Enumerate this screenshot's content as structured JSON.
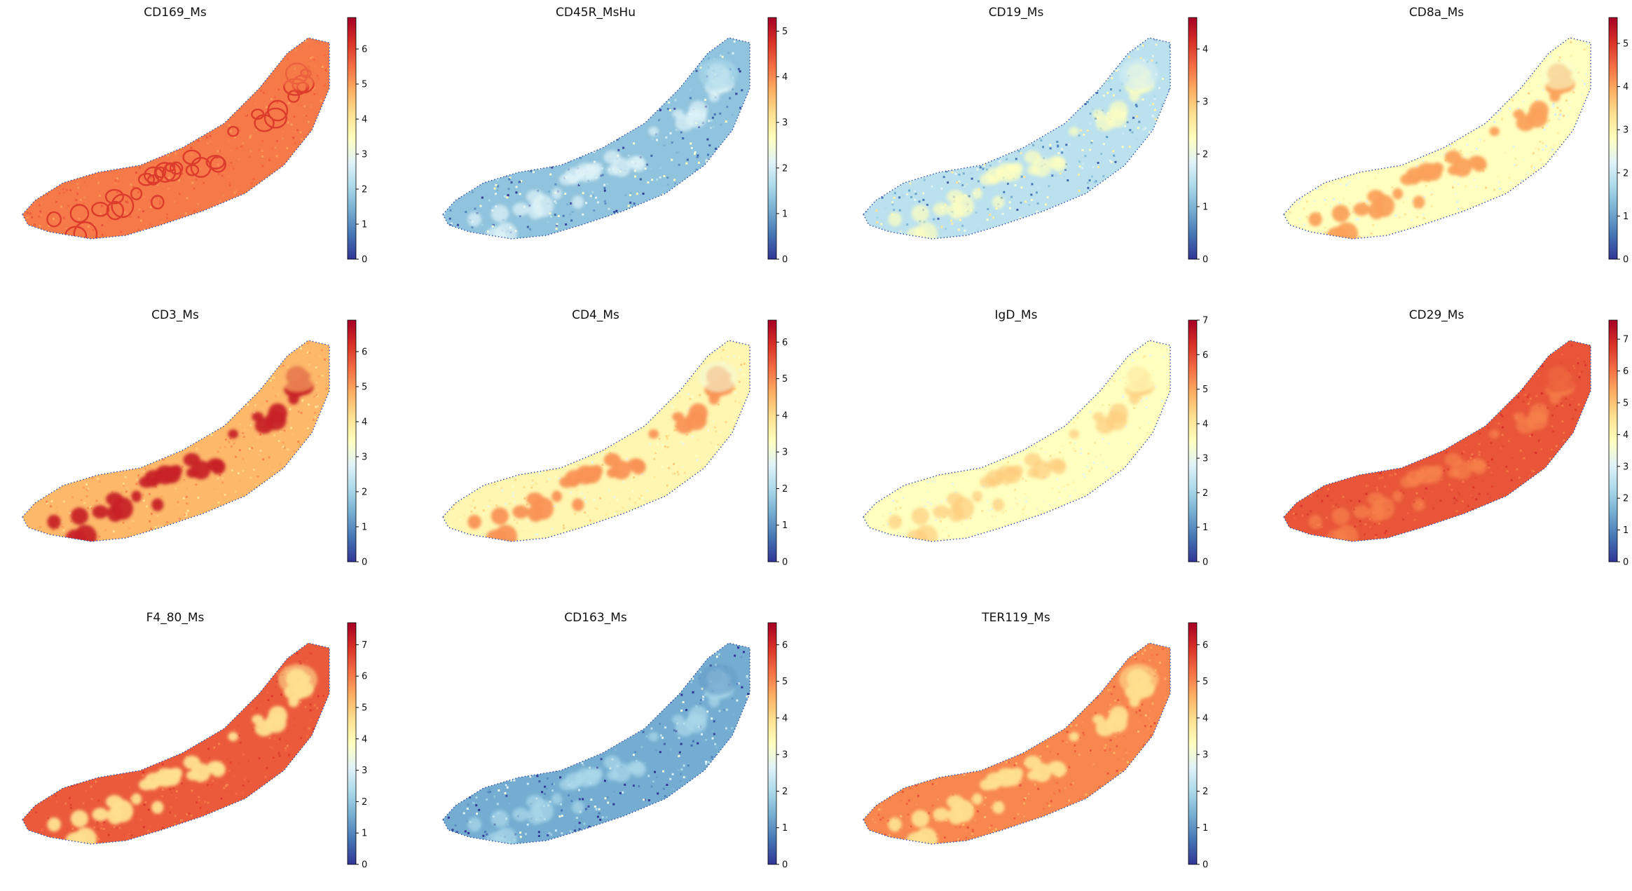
{
  "colors": {
    "colormap": "RdYlBu_r",
    "stops": [
      "#313695",
      "#4575b4",
      "#74add1",
      "#abd9e9",
      "#e0f3f8",
      "#ffffbf",
      "#fee090",
      "#fdae61",
      "#f46d43",
      "#d73027",
      "#a50026"
    ]
  },
  "chart_data": [
    {
      "type": "heatmap",
      "title": "CD169_Ms",
      "colorbar_ticks": [
        0,
        1,
        2,
        3,
        4,
        5,
        6
      ],
      "vmax": 6.9,
      "base_level": 0.78,
      "blob_level": 0.88,
      "blob_style": "rings",
      "tip_level": 0.78,
      "noise": 0.03
    },
    {
      "type": "heatmap",
      "title": "CD45R_MsHu",
      "colorbar_ticks": [
        0,
        1,
        2,
        3,
        4,
        5
      ],
      "vmax": 5.3,
      "base_level": 0.25,
      "blob_level": 0.4,
      "blob_style": "soft",
      "tip_level": 0.3,
      "noise": 0.12
    },
    {
      "type": "heatmap",
      "title": "CD19_Ms",
      "colorbar_ticks": [
        0,
        1,
        2,
        3,
        4
      ],
      "vmax": 4.6,
      "base_level": 0.33,
      "blob_level": 0.5,
      "blob_style": "soft",
      "tip_level": 0.38,
      "noise": 0.12
    },
    {
      "type": "heatmap",
      "title": "CD8a_Ms",
      "colorbar_ticks": [
        0,
        1,
        2,
        3,
        4,
        5
      ],
      "vmax": 5.6,
      "base_level": 0.5,
      "blob_level": 0.72,
      "blob_style": "spots",
      "tip_level": 0.48,
      "noise": 0.06
    },
    {
      "type": "heatmap",
      "title": "CD3_Ms",
      "colorbar_ticks": [
        0,
        1,
        2,
        3,
        4,
        5,
        6
      ],
      "vmax": 6.9,
      "base_level": 0.68,
      "blob_level": 0.93,
      "blob_style": "spots",
      "tip_level": 0.68,
      "noise": 0.04
    },
    {
      "type": "heatmap",
      "title": "CD4_Ms",
      "colorbar_ticks": [
        0,
        1,
        2,
        3,
        4,
        5,
        6
      ],
      "vmax": 6.6,
      "base_level": 0.53,
      "blob_level": 0.74,
      "blob_style": "spots",
      "tip_level": 0.46,
      "noise": 0.05
    },
    {
      "type": "heatmap",
      "title": "IgD_Ms",
      "colorbar_ticks": [
        0,
        1,
        2,
        3,
        4,
        5,
        6,
        7
      ],
      "vmax": 7.0,
      "base_level": 0.5,
      "blob_level": 0.64,
      "blob_style": "soft",
      "tip_level": 0.5,
      "noise": 0.04
    },
    {
      "type": "heatmap",
      "title": "CD29_Ms",
      "colorbar_ticks": [
        0,
        1,
        2,
        3,
        4,
        5,
        6,
        7
      ],
      "vmax": 7.6,
      "base_level": 0.84,
      "blob_level": 0.77,
      "blob_style": "soft",
      "tip_level": 0.84,
      "noise": 0.03
    },
    {
      "type": "heatmap",
      "title": "F4_80_Ms",
      "colorbar_ticks": [
        0,
        1,
        2,
        3,
        4,
        5,
        6,
        7
      ],
      "vmax": 7.7,
      "base_level": 0.83,
      "blob_level": 0.6,
      "blob_style": "spots",
      "tip_level": 0.6,
      "noise": 0.03
    },
    {
      "type": "heatmap",
      "title": "CD163_Ms",
      "colorbar_ticks": [
        0,
        1,
        2,
        3,
        4,
        5,
        6
      ],
      "vmax": 6.6,
      "base_level": 0.2,
      "blob_level": 0.3,
      "blob_style": "soft",
      "tip_level": 0.17,
      "noise": 0.12
    },
    {
      "type": "heatmap",
      "title": "TER119_Ms",
      "colorbar_ticks": [
        0,
        1,
        2,
        3,
        4,
        5,
        6
      ],
      "vmax": 6.6,
      "base_level": 0.76,
      "blob_level": 0.6,
      "blob_style": "spots",
      "tip_level": 0.6,
      "noise": 0.04
    }
  ]
}
